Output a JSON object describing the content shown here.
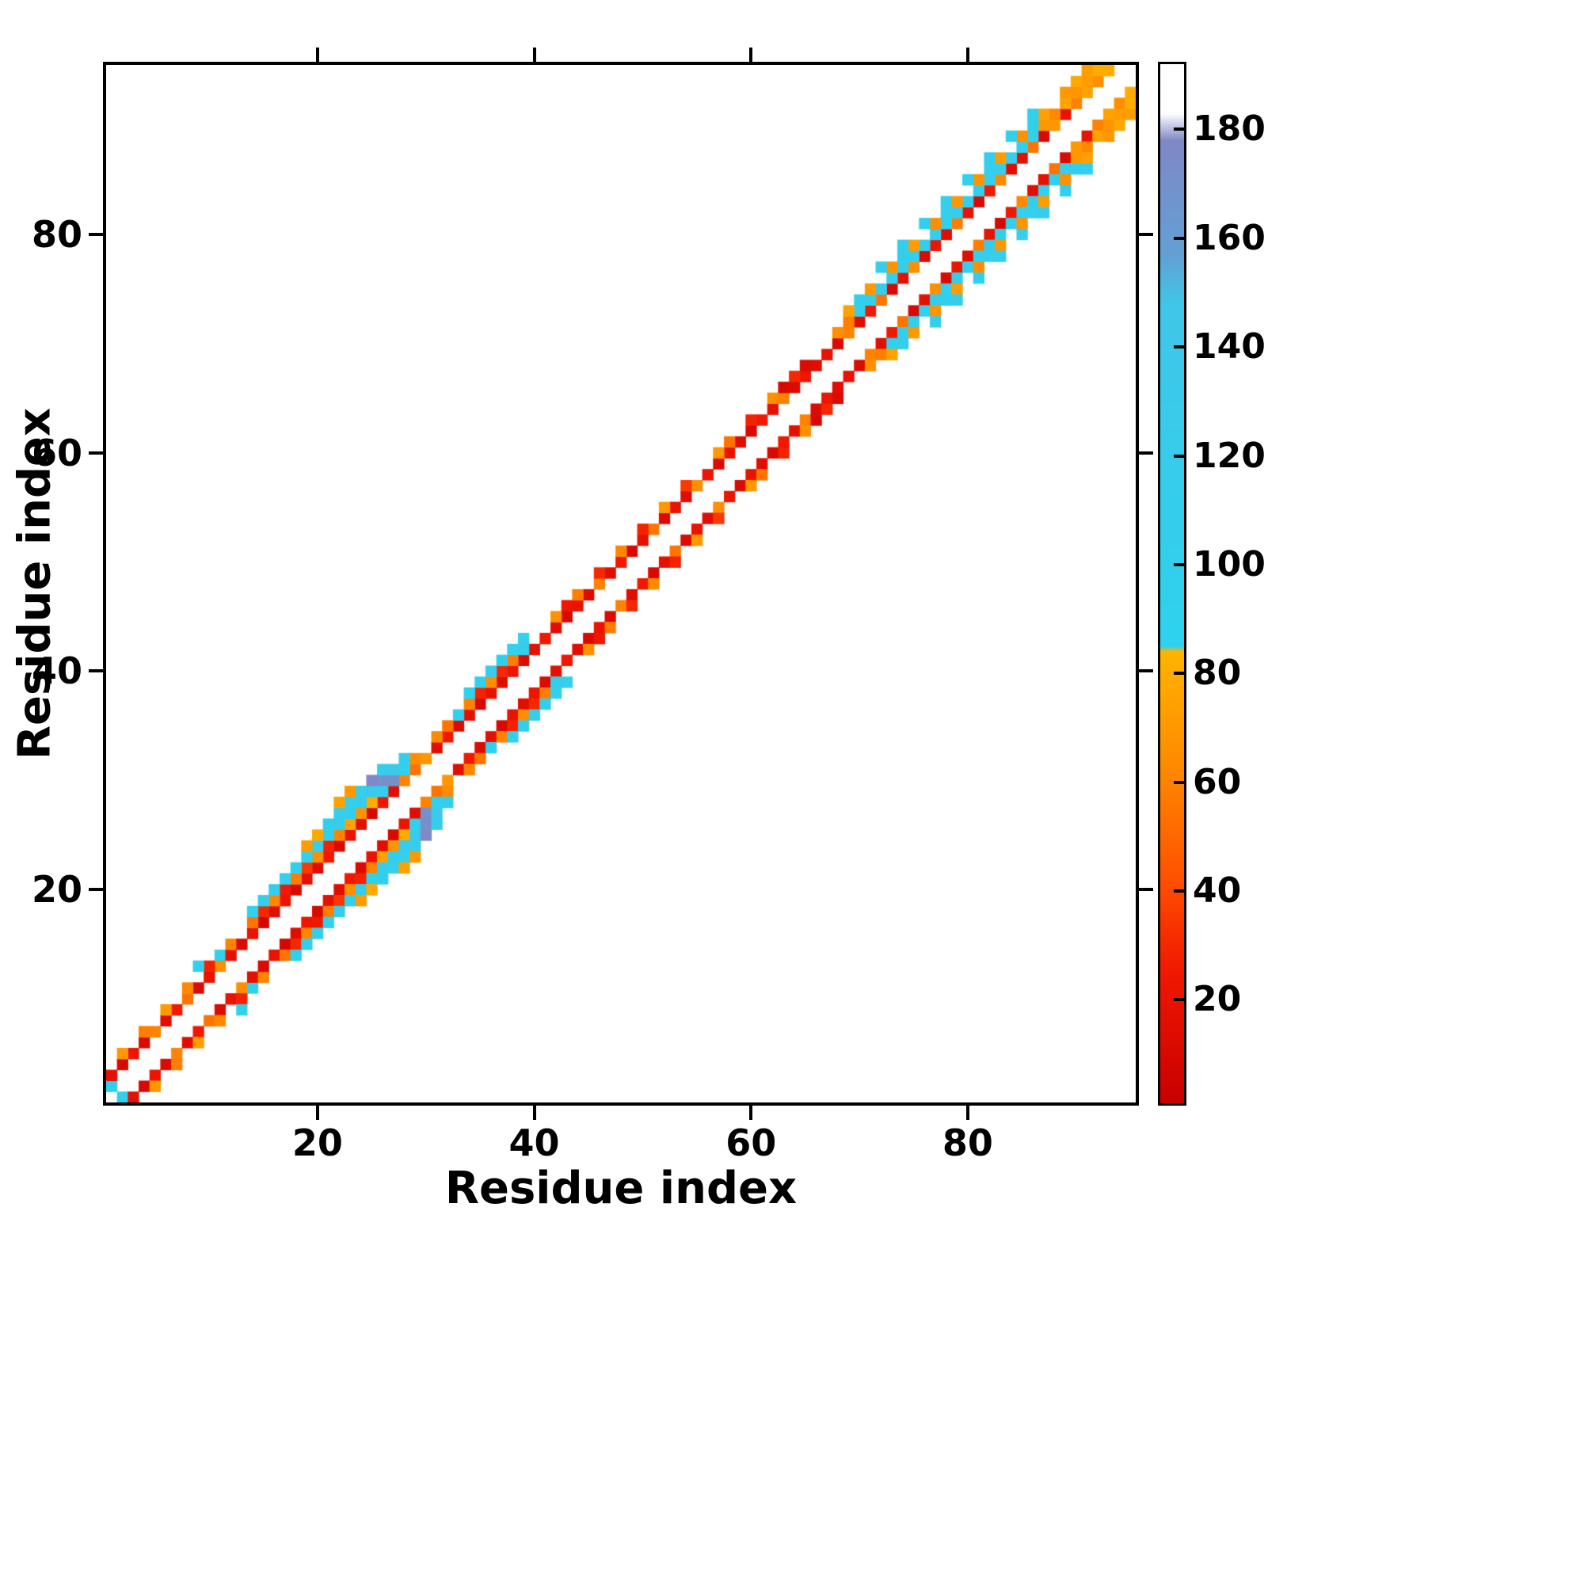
{
  "chart_data": {
    "type": "heatmap",
    "title": "",
    "xlabel": "Residue index",
    "ylabel": "Residue index",
    "x_range": [
      1,
      95
    ],
    "y_range": [
      1,
      95
    ],
    "x_ticks": [
      20,
      40,
      60,
      80
    ],
    "y_ticks": [
      20,
      40,
      60,
      80
    ],
    "grid": false,
    "background": "#ffffff",
    "colorbar": {
      "range": [
        1,
        192
      ],
      "ticks": [
        20,
        40,
        60,
        80,
        100,
        120,
        140,
        160,
        180
      ],
      "stops": [
        [
          1,
          "#c80000"
        ],
        [
          25,
          "#f01800"
        ],
        [
          42,
          "#ff5000"
        ],
        [
          62,
          "#ff8800"
        ],
        [
          84,
          "#ffb400"
        ],
        [
          85,
          "#2ed2ee"
        ],
        [
          148,
          "#40c6e8"
        ],
        [
          157,
          "#62a0d4"
        ],
        [
          178,
          "#8088c6"
        ],
        [
          183,
          "#ffffff"
        ],
        [
          192,
          "#ffffff"
        ]
      ]
    },
    "symmetric": true,
    "points": [
      [
        1,
        2,
        100
      ],
      [
        1,
        3,
        18
      ],
      [
        2,
        4,
        10
      ],
      [
        3,
        5,
        22
      ],
      [
        4,
        6,
        12
      ],
      [
        5,
        7,
        60
      ],
      [
        6,
        8,
        15
      ],
      [
        7,
        9,
        25
      ],
      [
        8,
        10,
        55
      ],
      [
        9,
        11,
        12
      ],
      [
        10,
        12,
        20
      ],
      [
        11,
        13,
        65
      ],
      [
        2,
        5,
        70
      ],
      [
        4,
        7,
        58
      ],
      [
        6,
        9,
        72
      ],
      [
        8,
        11,
        62
      ],
      [
        10,
        13,
        28
      ],
      [
        9,
        13,
        98
      ],
      [
        11,
        14,
        95
      ],
      [
        12,
        14,
        18
      ],
      [
        12,
        15,
        60
      ],
      [
        13,
        15,
        12
      ],
      [
        14,
        16,
        20
      ],
      [
        15,
        17,
        8
      ],
      [
        16,
        18,
        15
      ],
      [
        17,
        19,
        22
      ],
      [
        18,
        20,
        10
      ],
      [
        19,
        21,
        18
      ],
      [
        20,
        22,
        14
      ],
      [
        21,
        23,
        25
      ],
      [
        22,
        24,
        12
      ],
      [
        23,
        25,
        20
      ],
      [
        24,
        26,
        16
      ],
      [
        25,
        27,
        10
      ],
      [
        26,
        28,
        22
      ],
      [
        27,
        29,
        15
      ],
      [
        28,
        30,
        60
      ],
      [
        29,
        31,
        55
      ],
      [
        30,
        32,
        70
      ],
      [
        14,
        17,
        55
      ],
      [
        15,
        18,
        30
      ],
      [
        16,
        19,
        62
      ],
      [
        17,
        20,
        25
      ],
      [
        18,
        21,
        58
      ],
      [
        19,
        22,
        35
      ],
      [
        20,
        23,
        65
      ],
      [
        21,
        24,
        28
      ],
      [
        22,
        25,
        60
      ],
      [
        23,
        26,
        75
      ],
      [
        24,
        27,
        68
      ],
      [
        25,
        28,
        80
      ],
      [
        26,
        29,
        96
      ],
      [
        27,
        30,
        170
      ],
      [
        28,
        31,
        92
      ],
      [
        29,
        32,
        64
      ],
      [
        14,
        18,
        95
      ],
      [
        15,
        19,
        100
      ],
      [
        16,
        20,
        105
      ],
      [
        17,
        21,
        98
      ],
      [
        18,
        22,
        110
      ],
      [
        19,
        23,
        102
      ],
      [
        20,
        24,
        108
      ],
      [
        21,
        25,
        100
      ],
      [
        22,
        26,
        112
      ],
      [
        23,
        27,
        105
      ],
      [
        24,
        28,
        115
      ],
      [
        25,
        29,
        120
      ],
      [
        26,
        30,
        172
      ],
      [
        27,
        31,
        140
      ],
      [
        28,
        32,
        110
      ],
      [
        21,
        26,
        100
      ],
      [
        22,
        27,
        108
      ],
      [
        23,
        28,
        98
      ],
      [
        24,
        29,
        112
      ],
      [
        25,
        30,
        176
      ],
      [
        26,
        31,
        105
      ],
      [
        22,
        28,
        75
      ],
      [
        23,
        29,
        70
      ],
      [
        20,
        25,
        78
      ],
      [
        19,
        24,
        72
      ],
      [
        31,
        33,
        15
      ],
      [
        32,
        34,
        25
      ],
      [
        33,
        35,
        12
      ],
      [
        34,
        36,
        18
      ],
      [
        35,
        37,
        10
      ],
      [
        36,
        38,
        20
      ],
      [
        37,
        39,
        15
      ],
      [
        38,
        40,
        22
      ],
      [
        39,
        41,
        12
      ],
      [
        40,
        42,
        18
      ],
      [
        41,
        43,
        25
      ],
      [
        33,
        36,
        98
      ],
      [
        34,
        37,
        60
      ],
      [
        35,
        38,
        28
      ],
      [
        36,
        39,
        65
      ],
      [
        37,
        40,
        30
      ],
      [
        38,
        41,
        58
      ],
      [
        39,
        42,
        100
      ],
      [
        31,
        34,
        62
      ],
      [
        32,
        35,
        55
      ],
      [
        35,
        39,
        105
      ],
      [
        36,
        40,
        110
      ],
      [
        37,
        41,
        100
      ],
      [
        38,
        42,
        95
      ],
      [
        39,
        43,
        102
      ],
      [
        34,
        38,
        96
      ],
      [
        42,
        44,
        15
      ],
      [
        43,
        45,
        10
      ],
      [
        44,
        46,
        20
      ],
      [
        45,
        47,
        12
      ],
      [
        46,
        48,
        60
      ],
      [
        47,
        49,
        15
      ],
      [
        48,
        50,
        25
      ],
      [
        49,
        51,
        10
      ],
      [
        50,
        52,
        18
      ],
      [
        51,
        53,
        55
      ],
      [
        52,
        54,
        12
      ],
      [
        53,
        55,
        20
      ],
      [
        54,
        56,
        15
      ],
      [
        55,
        57,
        65
      ],
      [
        56,
        58,
        22
      ],
      [
        44,
        47,
        58
      ],
      [
        46,
        49,
        30
      ],
      [
        48,
        51,
        62
      ],
      [
        50,
        53,
        28
      ],
      [
        52,
        55,
        70
      ],
      [
        54,
        57,
        35
      ],
      [
        42,
        45,
        66
      ],
      [
        43,
        46,
        24
      ],
      [
        57,
        59,
        12
      ],
      [
        58,
        60,
        20
      ],
      [
        59,
        61,
        15
      ],
      [
        60,
        62,
        10
      ],
      [
        61,
        63,
        25
      ],
      [
        62,
        64,
        18
      ],
      [
        63,
        65,
        60
      ],
      [
        64,
        66,
        12
      ],
      [
        65,
        67,
        22
      ],
      [
        66,
        68,
        15
      ],
      [
        58,
        61,
        55
      ],
      [
        60,
        63,
        28
      ],
      [
        62,
        65,
        65
      ],
      [
        64,
        67,
        30
      ],
      [
        63,
        66,
        10
      ],
      [
        65,
        68,
        12
      ],
      [
        57,
        60,
        70
      ],
      [
        67,
        69,
        20
      ],
      [
        68,
        70,
        12
      ],
      [
        69,
        71,
        60
      ],
      [
        70,
        72,
        15
      ],
      [
        71,
        73,
        25
      ],
      [
        72,
        74,
        55
      ],
      [
        73,
        75,
        10
      ],
      [
        74,
        76,
        18
      ],
      [
        75,
        77,
        65
      ],
      [
        76,
        78,
        12
      ],
      [
        77,
        79,
        22
      ],
      [
        78,
        80,
        15
      ],
      [
        79,
        81,
        58
      ],
      [
        80,
        82,
        20
      ],
      [
        81,
        83,
        10
      ],
      [
        82,
        84,
        25
      ],
      [
        83,
        85,
        62
      ],
      [
        84,
        86,
        15
      ],
      [
        85,
        87,
        18
      ],
      [
        86,
        88,
        55
      ],
      [
        87,
        89,
        12
      ],
      [
        88,
        90,
        70
      ],
      [
        89,
        91,
        20
      ],
      [
        90,
        92,
        60
      ],
      [
        91,
        93,
        75
      ],
      [
        92,
        94,
        65
      ],
      [
        93,
        95,
        80
      ],
      [
        70,
        73,
        95
      ],
      [
        71,
        74,
        100
      ],
      [
        72,
        75,
        105
      ],
      [
        73,
        76,
        98
      ],
      [
        74,
        77,
        110
      ],
      [
        75,
        78,
        102
      ],
      [
        76,
        79,
        100
      ],
      [
        77,
        80,
        108
      ],
      [
        78,
        81,
        95
      ],
      [
        79,
        82,
        112
      ],
      [
        80,
        83,
        100
      ],
      [
        81,
        84,
        105
      ],
      [
        82,
        85,
        98
      ],
      [
        83,
        86,
        110
      ],
      [
        84,
        87,
        102
      ],
      [
        85,
        88,
        100
      ],
      [
        86,
        89,
        108
      ],
      [
        68,
        71,
        65
      ],
      [
        69,
        72,
        58
      ],
      [
        87,
        90,
        70
      ],
      [
        88,
        91,
        62
      ],
      [
        89,
        92,
        75
      ],
      [
        90,
        93,
        68
      ],
      [
        91,
        94,
        72
      ],
      [
        92,
        95,
        80
      ],
      [
        69,
        73,
        75
      ],
      [
        71,
        75,
        70
      ],
      [
        73,
        77,
        68
      ],
      [
        75,
        79,
        72
      ],
      [
        77,
        81,
        65
      ],
      [
        79,
        83,
        70
      ],
      [
        81,
        85,
        68
      ],
      [
        83,
        87,
        72
      ],
      [
        85,
        89,
        66
      ],
      [
        87,
        91,
        74
      ],
      [
        89,
        93,
        70
      ],
      [
        90,
        94,
        78
      ],
      [
        91,
        95,
        72
      ],
      [
        70,
        74,
        105
      ],
      [
        74,
        78,
        100
      ],
      [
        78,
        82,
        108
      ],
      [
        82,
        86,
        102
      ],
      [
        86,
        90,
        100
      ],
      [
        72,
        77,
        110
      ],
      [
        74,
        79,
        105
      ],
      [
        76,
        81,
        100
      ],
      [
        78,
        83,
        108
      ],
      [
        80,
        85,
        102
      ],
      [
        82,
        87,
        105
      ],
      [
        84,
        89,
        100
      ],
      [
        86,
        91,
        98
      ]
    ]
  }
}
